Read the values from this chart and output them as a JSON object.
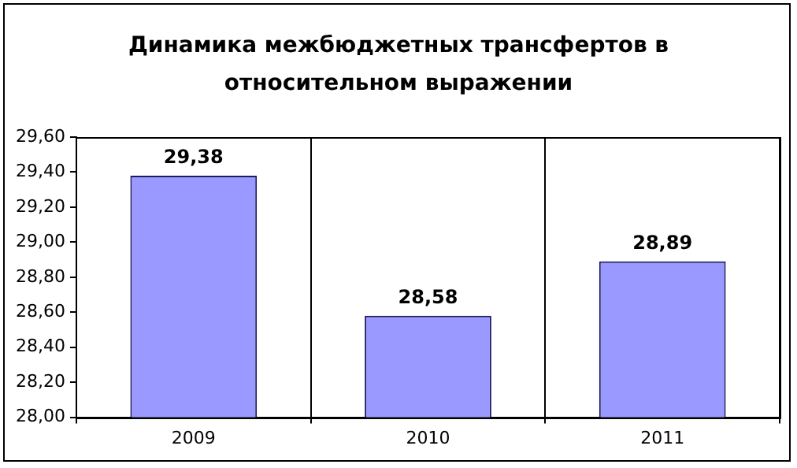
{
  "chart_data": {
    "type": "bar",
    "title": "Динамика межбюджетных трансфертов в относительном выражении",
    "categories": [
      "2009",
      "2010",
      "2011"
    ],
    "values": [
      29.38,
      28.58,
      28.89
    ],
    "value_labels": [
      "29,38",
      "28,58",
      "28,89"
    ],
    "color": "#9999ff",
    "ylim": [
      28,
      29.6
    ],
    "yticks": [
      {
        "value": 28,
        "label": "28,00"
      },
      {
        "value": 28.2,
        "label": "28,20"
      },
      {
        "value": 28.4,
        "label": "28,40"
      },
      {
        "value": 28.6,
        "label": "28,60"
      },
      {
        "value": 28.8,
        "label": "28,80"
      },
      {
        "value": 29,
        "label": "29,00"
      },
      {
        "value": 29.2,
        "label": "29,20"
      },
      {
        "value": 29.4,
        "label": "29,40"
      },
      {
        "value": 29.6,
        "label": "29,60"
      }
    ],
    "grid": "x",
    "legend": false
  }
}
